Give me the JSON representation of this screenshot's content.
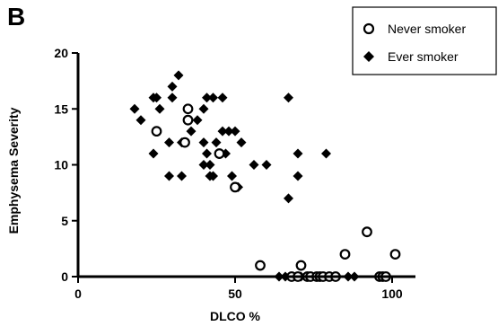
{
  "chart_data": {
    "type": "scatter",
    "panel_label": "B",
    "xlabel": "DLCO %",
    "ylabel": "Emphysema Severity",
    "xlim": [
      0,
      100
    ],
    "ylim": [
      0,
      20
    ],
    "xticks": [
      0,
      50,
      100
    ],
    "yticks": [
      0,
      5,
      10,
      15,
      20
    ],
    "grid": false,
    "legend_position": "top-right",
    "series": [
      {
        "name": "Never smoker",
        "marker": "open-circle",
        "color": "#000000",
        "points": [
          [
            25,
            13
          ],
          [
            35,
            15
          ],
          [
            34,
            12
          ],
          [
            35,
            14
          ],
          [
            45,
            11
          ],
          [
            50,
            8
          ],
          [
            58,
            1
          ],
          [
            68,
            0
          ],
          [
            71,
            1
          ],
          [
            70,
            0
          ],
          [
            73,
            0
          ],
          [
            74,
            0
          ],
          [
            76,
            0
          ],
          [
            77,
            0
          ],
          [
            78,
            0
          ],
          [
            80,
            0
          ],
          [
            82,
            0
          ],
          [
            85,
            2
          ],
          [
            92,
            4
          ],
          [
            96,
            0
          ],
          [
            97,
            0
          ],
          [
            98,
            0
          ],
          [
            101,
            2
          ]
        ]
      },
      {
        "name": "Ever smoker",
        "marker": "filled-diamond",
        "color": "#000000",
        "points": [
          [
            18,
            15
          ],
          [
            20,
            14
          ],
          [
            24,
            11
          ],
          [
            24,
            16
          ],
          [
            25,
            16
          ],
          [
            26,
            15
          ],
          [
            29,
            9
          ],
          [
            29,
            12
          ],
          [
            30,
            16
          ],
          [
            30,
            17
          ],
          [
            32,
            18
          ],
          [
            33,
            9
          ],
          [
            33,
            12
          ],
          [
            35,
            14
          ],
          [
            36,
            13
          ],
          [
            38,
            14
          ],
          [
            40,
            10
          ],
          [
            40,
            12
          ],
          [
            40,
            15
          ],
          [
            41,
            11
          ],
          [
            41,
            16
          ],
          [
            42,
            10
          ],
          [
            42,
            9
          ],
          [
            43,
            9
          ],
          [
            43,
            16
          ],
          [
            44,
            12
          ],
          [
            46,
            16
          ],
          [
            46,
            13
          ],
          [
            47,
            11
          ],
          [
            48,
            13
          ],
          [
            49,
            9
          ],
          [
            50,
            13
          ],
          [
            51,
            8
          ],
          [
            52,
            12
          ],
          [
            56,
            10
          ],
          [
            60,
            10
          ],
          [
            64,
            0
          ],
          [
            66,
            0
          ],
          [
            67,
            16
          ],
          [
            67,
            7
          ],
          [
            70,
            11
          ],
          [
            70,
            9
          ],
          [
            70,
            0
          ],
          [
            71,
            0
          ],
          [
            74,
            0
          ],
          [
            79,
            11
          ],
          [
            80,
            0
          ],
          [
            86,
            0
          ],
          [
            88,
            0
          ],
          [
            97,
            0
          ]
        ]
      }
    ]
  },
  "colors": {
    "ink": "#000000",
    "background": "#ffffff"
  }
}
